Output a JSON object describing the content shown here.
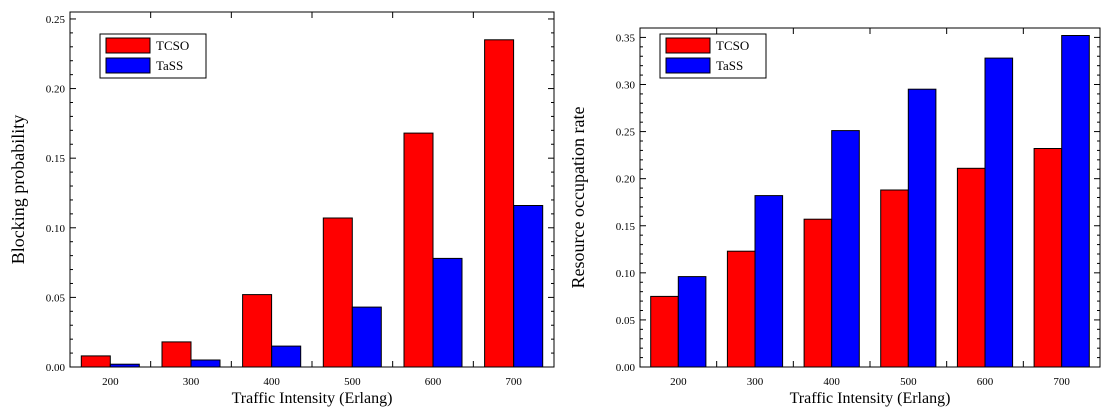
{
  "chart_data": [
    {
      "type": "bar",
      "categories": [
        "200",
        "300",
        "400",
        "500",
        "600",
        "700"
      ],
      "series": [
        {
          "name": "TCSO",
          "color": "#ff0000",
          "values": [
            0.008,
            0.018,
            0.052,
            0.107,
            0.168,
            0.235
          ]
        },
        {
          "name": "TaSS",
          "color": "#0000ff",
          "values": [
            0.002,
            0.005,
            0.015,
            0.043,
            0.078,
            0.116
          ]
        }
      ],
      "xlabel": "Traffic Intensity (Erlang)",
      "ylabel": "Blocking probability",
      "ylim": [
        0,
        0.255
      ],
      "yticks": [
        "0.00",
        "0.05",
        "0.10",
        "0.15",
        "0.20",
        "0.25"
      ],
      "legend_position": "top-left",
      "grid": false
    },
    {
      "type": "bar",
      "categories": [
        "200",
        "300",
        "400",
        "500",
        "600",
        "700"
      ],
      "series": [
        {
          "name": "TCSO",
          "color": "#ff0000",
          "values": [
            0.075,
            0.123,
            0.157,
            0.188,
            0.211,
            0.232
          ]
        },
        {
          "name": "TaSS",
          "color": "#0000ff",
          "values": [
            0.096,
            0.182,
            0.251,
            0.295,
            0.328,
            0.352
          ]
        }
      ],
      "xlabel": "Traffic Intensity (Erlang)",
      "ylabel": "Resource occupation rate",
      "ylim": [
        0,
        0.36
      ],
      "yticks": [
        "0.00",
        "0.05",
        "0.10",
        "0.15",
        "0.20",
        "0.25",
        "0.30",
        "0.35"
      ],
      "legend_position": "top-left",
      "grid": false
    }
  ]
}
